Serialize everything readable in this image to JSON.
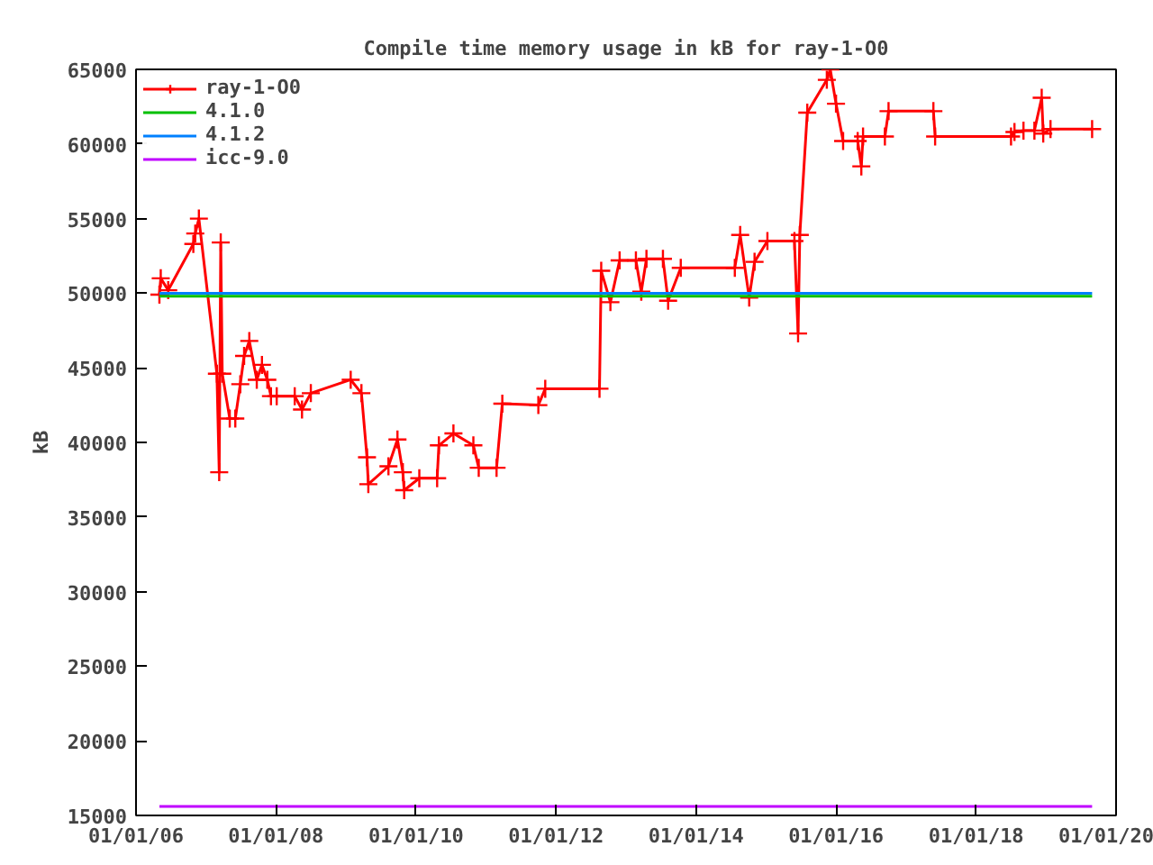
{
  "chart_data": {
    "type": "line",
    "title": "Compile time memory usage in kB for ray-1-O0",
    "ylabel": "kB",
    "xlim": [
      "2006-01-01",
      "2020-01-01"
    ],
    "xticks": [
      {
        "value": "2006-01-01",
        "label": "01/01/06"
      },
      {
        "value": "2008-01-01",
        "label": "01/01/08"
      },
      {
        "value": "2010-01-01",
        "label": "01/01/10"
      },
      {
        "value": "2012-01-01",
        "label": "01/01/12"
      },
      {
        "value": "2014-01-01",
        "label": "01/01/14"
      },
      {
        "value": "2016-01-01",
        "label": "01/01/16"
      },
      {
        "value": "2018-01-01",
        "label": "01/01/18"
      },
      {
        "value": "2020-01-01",
        "label": "01/01/20"
      }
    ],
    "ylim": [
      15000,
      65000
    ],
    "yticks": [
      15000,
      20000,
      25000,
      30000,
      35000,
      40000,
      45000,
      50000,
      55000,
      60000,
      65000
    ],
    "grid": false,
    "legend": "top left",
    "series": [
      {
        "name": "ray-1-O0",
        "color": "#ff0000",
        "marker": "cross",
        "x": [
          "2006-05-03",
          "2006-05-10",
          "2006-06-18",
          "2006-10-27",
          "2006-11-06",
          "2006-11-25",
          "2007-02-27",
          "2007-03-11",
          "2007-03-19",
          "2007-03-27",
          "2007-05-05",
          "2007-06-03",
          "2007-06-29",
          "2007-07-19",
          "2007-08-15",
          "2007-09-23",
          "2007-10-20",
          "2007-11-17",
          "2007-12-06",
          "2008-01-05",
          "2008-04-08",
          "2008-05-16",
          "2008-07-01",
          "2009-01-25",
          "2009-03-22",
          "2009-04-20",
          "2009-04-27",
          "2009-08-10",
          "2009-09-26",
          "2009-10-24",
          "2009-10-31",
          "2010-01-18",
          "2010-04-21",
          "2010-04-30",
          "2010-07-15",
          "2010-10-27",
          "2010-11-24",
          "2011-02-25",
          "2011-03-27",
          "2011-10-01",
          "2011-11-06",
          "2012-08-15",
          "2012-08-24",
          "2012-10-11",
          "2012-11-28",
          "2013-02-21",
          "2013-03-21",
          "2013-04-17",
          "2013-07-12",
          "2013-08-08",
          "2013-10-13",
          "2014-07-22",
          "2014-08-19",
          "2014-10-05",
          "2014-11-02",
          "2015-01-08",
          "2015-05-29",
          "2015-06-17",
          "2015-06-26",
          "2015-08-04",
          "2015-11-14",
          "2015-12-02",
          "2016-01-01",
          "2016-02-07",
          "2016-04-23",
          "2016-05-12",
          "2016-05-21",
          "2016-09-12",
          "2016-10-01",
          "2017-05-23",
          "2017-06-01",
          "2018-07-02",
          "2018-07-20",
          "2018-09-05",
          "2018-11-01",
          "2018-12-09",
          "2018-12-17",
          "2019-01-24",
          "2019-08-29"
        ],
        "values": [
          49900,
          51000,
          50200,
          53300,
          54000,
          55000,
          44600,
          38000,
          53400,
          44600,
          41600,
          41600,
          43900,
          45800,
          46800,
          44200,
          45200,
          44200,
          43100,
          43100,
          43100,
          42200,
          43300,
          44200,
          43300,
          39000,
          37200,
          38400,
          40200,
          38000,
          36800,
          37600,
          37600,
          39800,
          40600,
          39800,
          38300,
          38300,
          42600,
          42500,
          43600,
          43600,
          51500,
          49400,
          52200,
          52200,
          50100,
          52300,
          52300,
          49500,
          51700,
          51700,
          53900,
          49700,
          52100,
          53500,
          53500,
          47300,
          53900,
          62100,
          64300,
          65000,
          62700,
          60200,
          60200,
          58500,
          60500,
          60500,
          62200,
          62200,
          60500,
          60500,
          60800,
          60900,
          60900,
          63100,
          60700,
          61000,
          61000
        ]
      },
      {
        "name": "4.1.0",
        "color": "#00c000",
        "marker": "none",
        "x": [
          "2006-05-03",
          "2019-08-29"
        ],
        "values": [
          49800,
          49800
        ]
      },
      {
        "name": "4.1.2",
        "color": "#0080ff",
        "marker": "none",
        "x": [
          "2006-05-03",
          "2019-08-29"
        ],
        "values": [
          50000,
          50000
        ]
      },
      {
        "name": "icc-9.0",
        "color": "#c000ff",
        "marker": "none",
        "x": [
          "2006-05-03",
          "2019-08-29"
        ],
        "values": [
          15600,
          15600
        ]
      }
    ]
  }
}
